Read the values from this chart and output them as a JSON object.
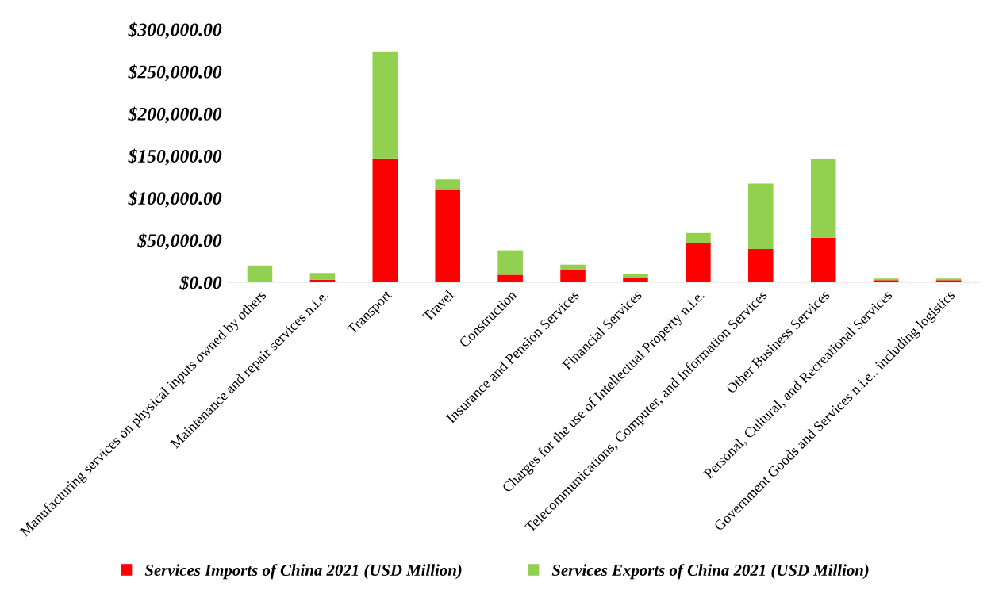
{
  "chart_data": {
    "type": "bar",
    "stacked": true,
    "categories": [
      "Manufacturing services on physical inputs owned by others",
      "Maintenance and repair services n.i.e.",
      "Transport",
      "Travel",
      "Construction",
      "Insurance and Pension Services",
      "Financial Services",
      "Charges for the use of Intellectual Property n.i.e.",
      "Telecommunications, Computer, and Information Services",
      "Other Business Services",
      "Personal, Cultural, and Recreational Services",
      "Government Goods and Services n.i.e., including logistics"
    ],
    "series": [
      {
        "name": "Services Imports of China 2021 (USD Million)",
        "color": "#ff0000",
        "values": [
          0,
          3000,
          147000,
          110500,
          9000,
          15500,
          5000,
          47000,
          39500,
          53000,
          2500,
          2500
        ]
      },
      {
        "name": "Services Exports of China 2021 (USD Million)",
        "color": "#92d050",
        "values": [
          20000,
          8000,
          127000,
          11500,
          29000,
          5500,
          5000,
          11500,
          77500,
          93500,
          2000,
          2000
        ]
      }
    ],
    "ylim": [
      0,
      300000
    ],
    "yticks": [
      {
        "value": 0,
        "label": "$0.00"
      },
      {
        "value": 50000,
        "label": "$50,000.00"
      },
      {
        "value": 100000,
        "label": "$100,000.00"
      },
      {
        "value": 150000,
        "label": "$150,000.00"
      },
      {
        "value": 200000,
        "label": "$200,000.00"
      },
      {
        "value": 250000,
        "label": "$250,000.00"
      },
      {
        "value": 300000,
        "label": "$300,000.00"
      }
    ],
    "grid": false,
    "legend": "bottom"
  }
}
